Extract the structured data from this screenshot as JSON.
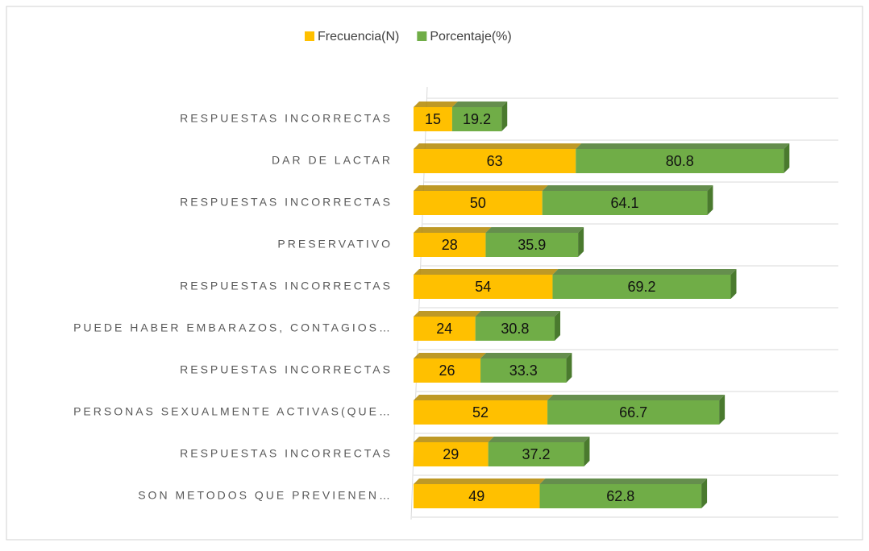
{
  "chart_data": {
    "type": "stacked-bar-horizontal",
    "categories": [
      "RESPUESTAS INCORRECTAS",
      "DAR DE LACTAR",
      "RESPUESTAS INCORRECTAS",
      "PRESERVATIVO",
      "RESPUESTAS INCORRECTAS",
      "PUEDE HABER EMBARAZOS, CONTAGIOS…",
      "RESPUESTAS INCORRECTAS",
      "PERSONAS SEXUALMENTE ACTIVAS(QUE…",
      "RESPUESTAS INCORRECTAS",
      "SON METODOS QUE PREVIENEN…"
    ],
    "series": [
      {
        "name": "Frecuencia(N)",
        "color": "#ffc000",
        "side": "#b38700",
        "values": [
          15,
          63,
          50,
          28,
          54,
          24,
          26,
          52,
          29,
          49
        ]
      },
      {
        "name": "Porcentaje(%)",
        "color": "#70ad47",
        "side": "#4a7a2e",
        "values": [
          19.2,
          80.8,
          64.1,
          35.9,
          69.2,
          30.8,
          33.3,
          66.7,
          37.2,
          62.8
        ]
      }
    ],
    "xlim": [
      0,
      165
    ],
    "legend": "top",
    "grid": true
  }
}
